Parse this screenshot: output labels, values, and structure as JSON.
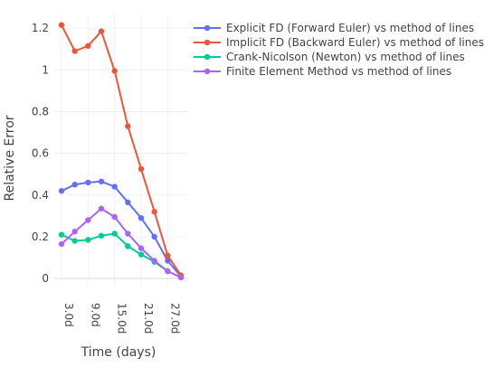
{
  "chart_data": {
    "type": "line",
    "title": "",
    "xlabel": "Time (days)",
    "ylabel": "Relative Error",
    "x": [
      3,
      6,
      9,
      12,
      15,
      18,
      21,
      24,
      27,
      30
    ],
    "x_tick_values": [
      3,
      9,
      15,
      21,
      27
    ],
    "x_tick_labels": [
      "3.0d",
      "9.0d",
      "15.0d",
      "21.0d",
      "27.0d"
    ],
    "xlim": [
      3,
      30
    ],
    "y_tick_values": [
      0,
      0.2,
      0.4,
      0.6,
      0.8,
      1,
      1.2
    ],
    "y_tick_labels": [
      "0",
      "0.2",
      "0.4",
      "0.6",
      "0.8",
      "1",
      "1.2"
    ],
    "ylim": [
      -0.03,
      1.27
    ],
    "grid": true,
    "legend_position": "top-right",
    "series": [
      {
        "name": "Explicit FD (Forward Euler) vs method of lines",
        "color": "#636EFA",
        "values": [
          0.42,
          0.45,
          0.46,
          0.465,
          0.44,
          0.365,
          0.29,
          0.2,
          0.085,
          0.01
        ]
      },
      {
        "name": "Implicit FD (Backward Euler) vs method of lines",
        "color": "#EF553B",
        "values": [
          1.215,
          1.09,
          1.115,
          1.185,
          0.995,
          0.73,
          0.525,
          0.32,
          0.11,
          0.015
        ]
      },
      {
        "name": "Crank-Nicolson (Newton) vs method of lines",
        "color": "#00CC96",
        "values": [
          0.21,
          0.18,
          0.185,
          0.205,
          0.215,
          0.155,
          0.115,
          0.08,
          0.035,
          0.005
        ]
      },
      {
        "name": "Finite Element Method vs method of lines",
        "color": "#AB63FA",
        "values": [
          0.165,
          0.225,
          0.28,
          0.335,
          0.295,
          0.215,
          0.145,
          0.085,
          0.035,
          0.005
        ]
      }
    ]
  }
}
